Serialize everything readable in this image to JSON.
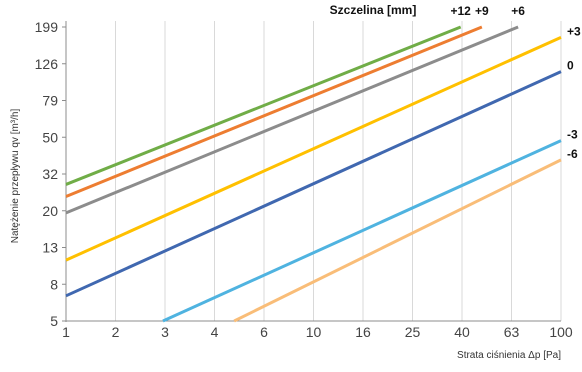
{
  "chart_data": {
    "type": "line",
    "legend_title": "Szczelina [mm]",
    "xlabel": "Strata ciśnienia Δp [Pa]",
    "ylabel": "Natężenie przepływu qv [m³/h]",
    "x_scale": "log",
    "y_scale": "log",
    "x_ticks": [
      "1",
      "2",
      "3",
      "4",
      "6",
      "10",
      "16",
      "25",
      "40",
      "63",
      "100"
    ],
    "y_ticks": [
      "5",
      "8",
      "13",
      "20",
      "32",
      "50",
      "79",
      "126",
      "199"
    ],
    "xlim": [
      1,
      100
    ],
    "ylim": [
      5,
      199
    ],
    "grid": "vertical",
    "series": [
      {
        "name": "+12",
        "color": "#70ad47",
        "x": [
          1,
          39.5
        ],
        "y": [
          28,
          199
        ]
      },
      {
        "name": "+9",
        "color": "#ed7d31",
        "x": [
          1,
          48
        ],
        "y": [
          24,
          199
        ]
      },
      {
        "name": "+6",
        "color": "#8c8c8c",
        "x": [
          1,
          67
        ],
        "y": [
          19.5,
          199
        ]
      },
      {
        "name": "+3",
        "color": "#ffc000",
        "x": [
          1,
          100
        ],
        "y": [
          11,
          175
        ]
      },
      {
        "name": "0",
        "color": "#4068b0",
        "x": [
          1,
          100
        ],
        "y": [
          6.9,
          114
        ]
      },
      {
        "name": "-3",
        "color": "#4fb3e0",
        "x": [
          2.95,
          100
        ],
        "y": [
          5,
          48
        ]
      },
      {
        "name": "-6",
        "color": "#f9bd78",
        "x": [
          4.7,
          100
        ],
        "y": [
          5,
          38
        ]
      }
    ]
  }
}
